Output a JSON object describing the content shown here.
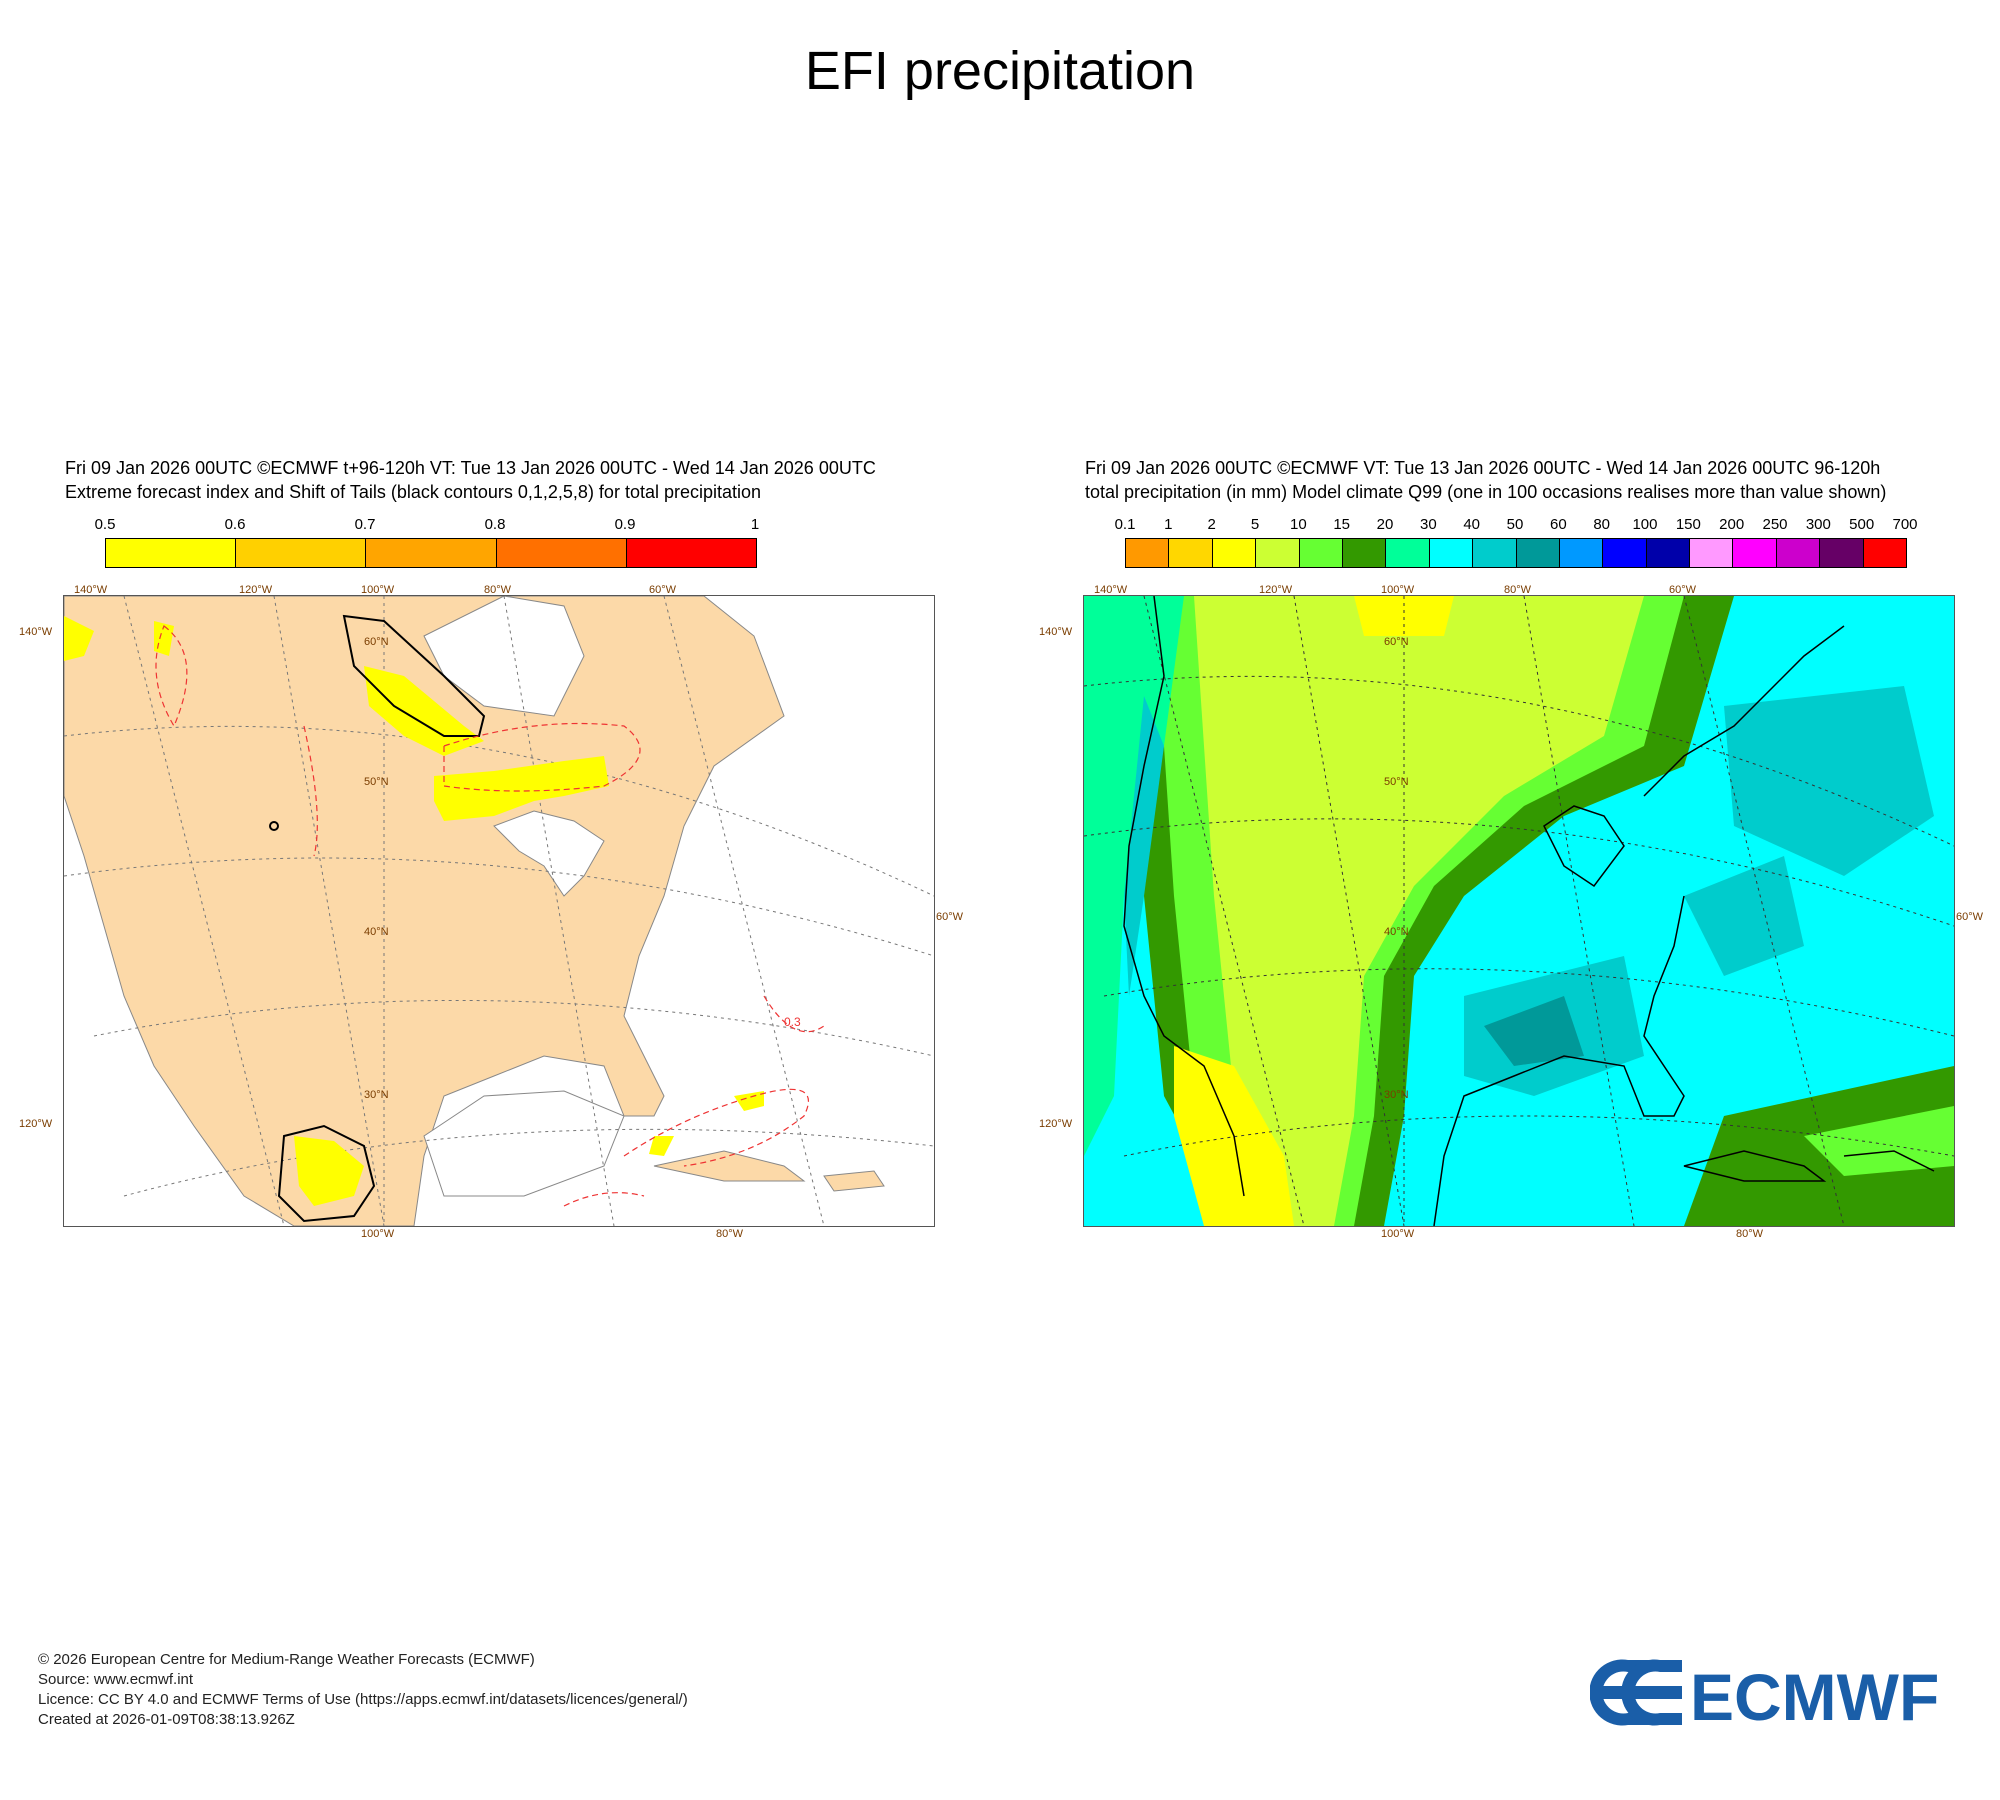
{
  "page": {
    "title": "EFI precipitation"
  },
  "left_panel": {
    "header_line1": "Fri 09 Jan 2026 00UTC ©ECMWF t+96-120h  VT: Tue 13 Jan 2026 00UTC - Wed 14 Jan 2026 00UTC",
    "header_line2": "Extreme forecast index and Shift of Tails (black contours 0,1,2,5,8) for total precipitation",
    "colorbar": {
      "ticks": [
        "0.5",
        "0.6",
        "0.7",
        "0.8",
        "0.9",
        "1"
      ],
      "colors": [
        "#ffff00",
        "#ffd000",
        "#ffa500",
        "#ff7000",
        "#ff0000"
      ]
    },
    "map_labels": {
      "top_140w": "140°W",
      "top_120w": "120°W",
      "top_100w": "100°W",
      "top_80w": "80°W",
      "top_60w": "60°W",
      "lat_60n": "60°N",
      "lat_50n": "50°N",
      "lat_40n": "40°N",
      "lat_30n": "30°N",
      "left_140w": "140°W",
      "left_120w": "120°W",
      "right_60w": "60°W",
      "bottom_100w": "100°W",
      "bottom_80w": "80°W",
      "sot_contour": "0.3"
    }
  },
  "right_panel": {
    "header_line1": "Fri 09 Jan 2026 00UTC ©ECMWF VT: Tue 13 Jan 2026 00UTC - Wed 14 Jan 2026 00UTC   96-120h",
    "header_line2": "total precipitation (in mm)  Model climate Q99 (one in 100 occasions realises more than value shown)",
    "colorbar": {
      "ticks": [
        "0.1",
        "1",
        "2",
        "5",
        "10",
        "15",
        "20",
        "30",
        "40",
        "50",
        "60",
        "80",
        "100",
        "150",
        "200",
        "250",
        "300",
        "500",
        "700"
      ],
      "colors": [
        "#ff9900",
        "#ffd700",
        "#ffff00",
        "#ccff33",
        "#66ff33",
        "#339900",
        "#00ff99",
        "#00ffff",
        "#00cccc",
        "#009999",
        "#0099ff",
        "#0000ff",
        "#0000aa",
        "#ff99ff",
        "#ff00ff",
        "#cc00cc",
        "#660066",
        "#ff0000"
      ]
    },
    "map_labels": {
      "top_140w": "140°W",
      "top_120w": "120°W",
      "top_100w": "100°W",
      "top_80w": "80°W",
      "top_60w": "60°W",
      "lat_60n": "60°N",
      "lat_50n": "50°N",
      "lat_40n": "40°N",
      "lat_30n": "30°N",
      "left_140w": "140°W",
      "left_120w": "120°W",
      "right_60w": "60°W",
      "bottom_100w": "100°W",
      "bottom_80w": "80°W"
    }
  },
  "footer": {
    "copyright": "© 2026 European Centre for Medium-Range Weather Forecasts (ECMWF)",
    "source": "Source: www.ecmwf.int",
    "licence": "Licence: CC BY 4.0 and ECMWF Terms of Use (https://apps.ecmwf.int/datasets/licences/general/)",
    "created": "Created at 2026-01-09T08:38:13.926Z",
    "logo_text": "ECMWF"
  },
  "colors": {
    "land": "#fcd9a8",
    "ocean": "#ffffff",
    "logo_blue": "#1a5ea8"
  }
}
